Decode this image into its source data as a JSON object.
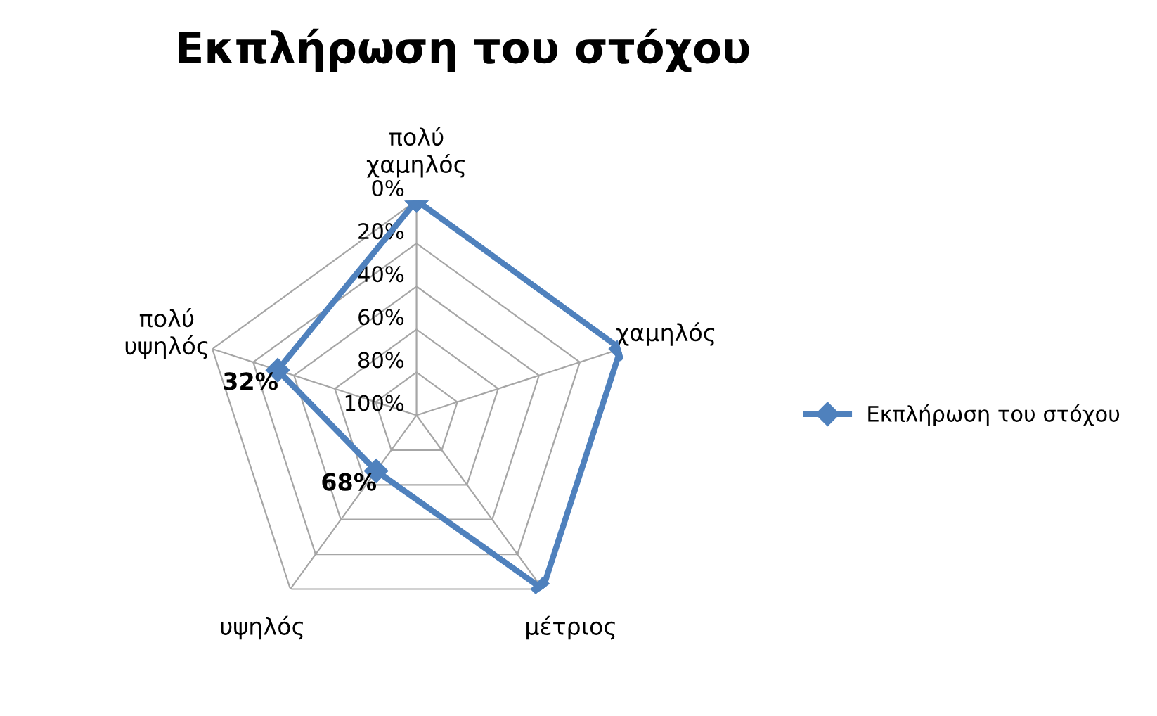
{
  "chart_data": {
    "type": "radar",
    "title": "Εκπλήρωση του στόχου",
    "categories": [
      "πολύ\nχαμηλός",
      "χαμηλός",
      "μέτριος",
      "υψηλός",
      "πολύ\nυψηλός"
    ],
    "series": [
      {
        "name": "Εκπλήρωση του στόχου",
        "color": "#4f81bd",
        "values": [
          0,
          0,
          0,
          68,
          32
        ],
        "value_labels": [
          null,
          null,
          null,
          "68%",
          "32%"
        ]
      }
    ],
    "ylim": [
      100,
      0
    ],
    "yticks": [
      {
        "value": 0,
        "label": "0%"
      },
      {
        "value": 20,
        "label": "20%"
      },
      {
        "value": 40,
        "label": "40%"
      },
      {
        "value": 60,
        "label": "60%"
      },
      {
        "value": 80,
        "label": "80%"
      },
      {
        "value": 100,
        "label": "100%"
      }
    ],
    "grid": true,
    "legend": "right",
    "marker": "diamond",
    "line_style": "solid"
  }
}
